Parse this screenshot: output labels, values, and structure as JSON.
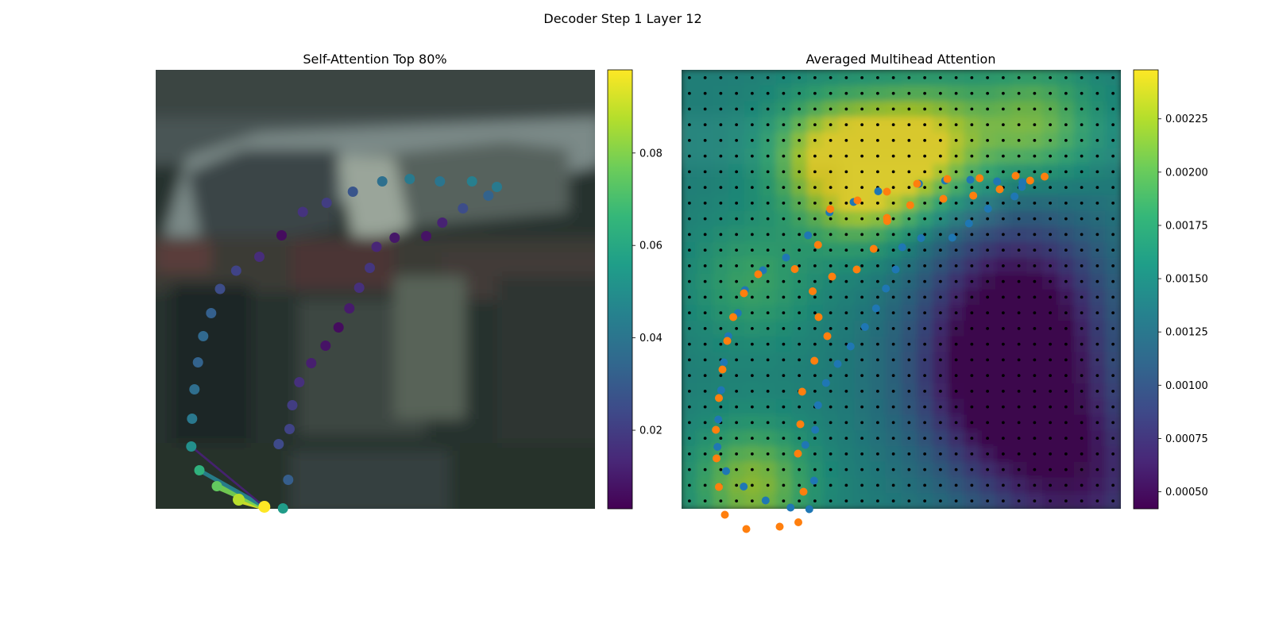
{
  "figure": {
    "title": "Decoder Step 1 Layer 12"
  },
  "chart_data": [
    {
      "type": "scatter",
      "panel": "self-attention",
      "title": "Self-Attention Top 80%",
      "background": "blurred dark photo of a parked car",
      "axes": "off",
      "colormap": "viridis",
      "colorbar": {
        "min": 0.003,
        "max": 0.098,
        "ticks": [
          "0.02",
          "0.04",
          "0.06",
          "0.08"
        ],
        "tick_values": [
          0.02,
          0.04,
          0.06,
          0.08
        ]
      },
      "points": [
        {
          "x": 136.8,
          "y": 550.5,
          "v": 0.098
        },
        {
          "x": 104.5,
          "y": 541.5,
          "v": 0.088
        },
        {
          "x": 77.0,
          "y": 524.5,
          "v": 0.075
        },
        {
          "x": 55.0,
          "y": 504.5,
          "v": 0.064
        },
        {
          "x": 44.8,
          "y": 474.5,
          "v": 0.05
        },
        {
          "x": 45.8,
          "y": 439.5,
          "v": 0.041
        },
        {
          "x": 48.8,
          "y": 402.5,
          "v": 0.037
        },
        {
          "x": 53.2,
          "y": 368.5,
          "v": 0.033
        },
        {
          "x": 59.8,
          "y": 335.5,
          "v": 0.035
        },
        {
          "x": 69.8,
          "y": 306.5,
          "v": 0.032
        },
        {
          "x": 81.0,
          "y": 276.0,
          "v": 0.025
        },
        {
          "x": 101.3,
          "y": 253.0,
          "v": 0.022
        },
        {
          "x": 130.5,
          "y": 235.5,
          "v": 0.015
        },
        {
          "x": 158.5,
          "y": 208.5,
          "v": 0.006
        },
        {
          "x": 185.2,
          "y": 179.0,
          "v": 0.017
        },
        {
          "x": 215.2,
          "y": 167.5,
          "v": 0.02
        },
        {
          "x": 248.2,
          "y": 153.5,
          "v": 0.028
        },
        {
          "x": 285.2,
          "y": 140.5,
          "v": 0.038
        },
        {
          "x": 319.8,
          "y": 137.5,
          "v": 0.042
        },
        {
          "x": 357.8,
          "y": 140.5,
          "v": 0.04
        },
        {
          "x": 398.2,
          "y": 140.5,
          "v": 0.044
        },
        {
          "x": 429.5,
          "y": 147.5,
          "v": 0.042
        },
        {
          "x": 418.8,
          "y": 158.5,
          "v": 0.033
        },
        {
          "x": 386.8,
          "y": 174.5,
          "v": 0.025
        },
        {
          "x": 360.8,
          "y": 192.5,
          "v": 0.012
        },
        {
          "x": 340.5,
          "y": 209.5,
          "v": 0.008
        },
        {
          "x": 300.8,
          "y": 211.5,
          "v": 0.009
        },
        {
          "x": 278.0,
          "y": 223.0,
          "v": 0.013
        },
        {
          "x": 269.5,
          "y": 249.5,
          "v": 0.018
        },
        {
          "x": 256.2,
          "y": 274.5,
          "v": 0.016
        },
        {
          "x": 243.8,
          "y": 300.5,
          "v": 0.01
        },
        {
          "x": 230.2,
          "y": 324.5,
          "v": 0.006
        },
        {
          "x": 213.8,
          "y": 347.5,
          "v": 0.008
        },
        {
          "x": 195.8,
          "y": 369.5,
          "v": 0.011
        },
        {
          "x": 180.8,
          "y": 393.5,
          "v": 0.016
        },
        {
          "x": 172.0,
          "y": 422.5,
          "v": 0.02
        },
        {
          "x": 168.5,
          "y": 452.5,
          "v": 0.022
        },
        {
          "x": 154.8,
          "y": 471.5,
          "v": 0.024
        },
        {
          "x": 166.8,
          "y": 516.5,
          "v": 0.031
        },
        {
          "x": 160.2,
          "y": 552.5,
          "v": 0.055
        }
      ],
      "lines": [
        {
          "from": [
            136.8,
            550.5
          ],
          "to": [
            104.5,
            541.5
          ],
          "v": 0.092
        },
        {
          "from": [
            136.8,
            550.5
          ],
          "to": [
            77.0,
            524.5
          ],
          "v": 0.078
        },
        {
          "from": [
            136.8,
            550.5
          ],
          "to": [
            55.0,
            504.5
          ],
          "v": 0.045
        },
        {
          "from": [
            136.8,
            550.5
          ],
          "to": [
            44.8,
            474.5
          ],
          "v": 0.012
        }
      ]
    },
    {
      "type": "heatmap",
      "panel": "averaged-attention",
      "title": "Averaged Multihead Attention",
      "grid": "28 x 28 patch grid with black center dots",
      "axes": "off",
      "colormap": "viridis",
      "colorbar": {
        "min": 0.00042,
        "max": 0.00248,
        "ticks": [
          "0.00050",
          "0.00075",
          "0.00100",
          "0.00125",
          "0.00150",
          "0.00175",
          "0.00200",
          "0.00225"
        ],
        "tick_values": [
          0.0005,
          0.00075,
          0.001,
          0.00125,
          0.0015,
          0.00175,
          0.002,
          0.00225
        ]
      },
      "hotspots": [
        {
          "col": 9,
          "row": 5,
          "v": 0.00235
        },
        {
          "col": 13,
          "row": 5,
          "v": 0.0022
        },
        {
          "col": 16,
          "row": 4,
          "v": 0.0021
        },
        {
          "col": 22,
          "row": 3,
          "v": 0.0021
        },
        {
          "col": 11,
          "row": 8,
          "v": 0.0019
        },
        {
          "col": 4,
          "row": 13,
          "v": 0.00185
        },
        {
          "col": 4,
          "row": 26,
          "v": 0.0022
        },
        {
          "col": 20,
          "row": 20,
          "v": 0.00045
        },
        {
          "col": 21,
          "row": 14,
          "v": 0.0006
        },
        {
          "col": 25,
          "row": 26,
          "v": 0.0007
        }
      ],
      "baseline": 0.00148,
      "series": [
        {
          "color": "#1f77b4",
          "points": [
            [
              298.8,
              143.5
            ],
            [
              331.8,
              139.5
            ],
            [
              363.5,
              138.5
            ],
            [
              397.2,
              140.5
            ],
            [
              429.2,
              141.5
            ],
            [
              428.5,
              147.5
            ],
            [
              419.2,
              159.5
            ],
            [
              385.8,
              175.0
            ],
            [
              361.8,
              193.5
            ],
            [
              340.8,
              211.5
            ],
            [
              301.5,
              212.0
            ],
            [
              277.8,
              223.5
            ],
            [
              269.5,
              251.5
            ],
            [
              257.2,
              275.5
            ],
            [
              244.8,
              300.5
            ],
            [
              230.8,
              324.0
            ],
            [
              212.8,
              348.5
            ],
            [
              196.5,
              370.5
            ],
            [
              181.8,
              394.5
            ],
            [
              171.8,
              422.5
            ],
            [
              168.2,
              453.5
            ],
            [
              155.8,
              472.5
            ],
            [
              166.8,
              517.5
            ],
            [
              160.8,
              553.5
            ],
            [
              137.2,
              551.5
            ],
            [
              105.8,
              542.5
            ],
            [
              78.2,
              525.0
            ],
            [
              56.0,
              505.5
            ],
            [
              45.2,
              475.0
            ],
            [
              46.2,
              440.5
            ],
            [
              49.8,
              403.5
            ],
            [
              53.2,
              368.5
            ],
            [
              58.8,
              335.5
            ],
            [
              70.8,
              306.5
            ],
            [
              79.8,
              277.5
            ],
            [
              102.5,
              252.5
            ],
            [
              131.5,
              236.5
            ],
            [
              159.2,
              208.5
            ],
            [
              186.2,
              179.5
            ],
            [
              216.5,
              166.5
            ],
            [
              247.5,
              153.0
            ]
          ]
        },
        {
          "color": "#ff7f0e",
          "points": [
            [
              457.0,
              134.5
            ],
            [
              438.8,
              139.5
            ],
            [
              420.5,
              133.5
            ],
            [
              400.5,
              150.5
            ],
            [
              375.2,
              136.5
            ],
            [
              367.2,
              158.5
            ],
            [
              334.5,
              137.5
            ],
            [
              329.5,
              162.5
            ],
            [
              296.5,
              143.5
            ],
            [
              287.8,
              170.5
            ],
            [
              258.8,
              190.5
            ],
            [
              258.5,
              153.5
            ],
            [
              221.5,
              164.5
            ],
            [
              187.2,
              175.5
            ],
            [
              171.8,
              220.5
            ],
            [
              241.8,
              225.5
            ],
            [
              220.5,
              251.5
            ],
            [
              189.5,
              260.5
            ],
            [
              142.5,
              251.0
            ],
            [
              96.5,
              257.5
            ],
            [
              78.5,
              281.5
            ],
            [
              65.0,
              311.5
            ],
            [
              57.5,
              341.5
            ],
            [
              51.5,
              377.5
            ],
            [
              47.0,
              413.5
            ],
            [
              43.2,
              453.5
            ],
            [
              44.0,
              489.5
            ],
            [
              47.0,
              525.5
            ],
            [
              54.5,
              560.5
            ],
            [
              81.5,
              578.5
            ],
            [
              123.5,
              575.5
            ],
            [
              147.0,
              570.0
            ],
            [
              153.5,
              531.5
            ],
            [
              146.5,
              483.5
            ],
            [
              149.5,
              446.5
            ],
            [
              151.8,
              405.5
            ],
            [
              167.2,
              366.5
            ],
            [
              183.5,
              335.5
            ],
            [
              172.5,
              311.5
            ],
            [
              165.0,
              279.0
            ],
            [
              258.5,
              186.5
            ]
          ]
        }
      ]
    }
  ]
}
